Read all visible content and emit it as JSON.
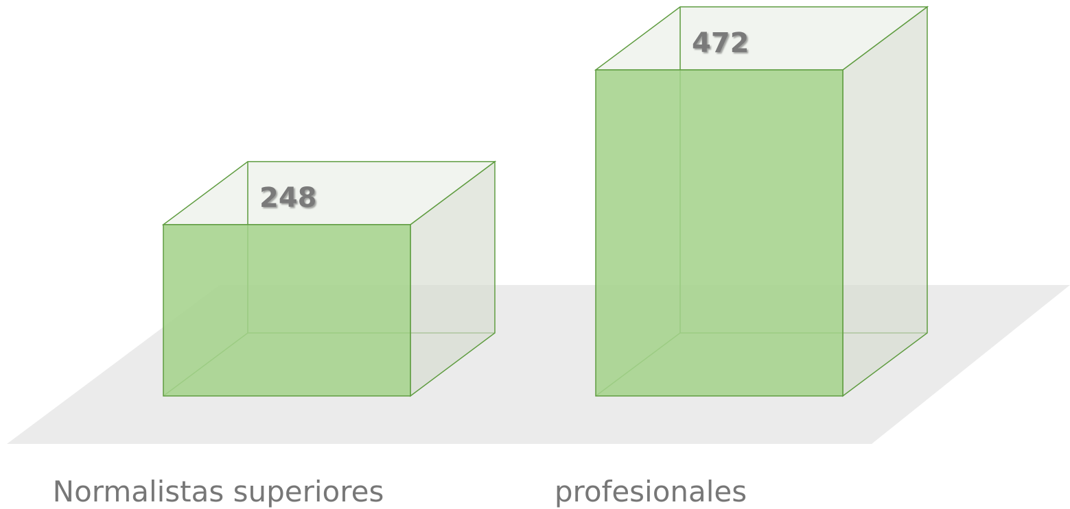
{
  "chart_data": {
    "type": "bar3d",
    "categories": [
      "Normalistas superiores",
      "profesionales"
    ],
    "values": [
      248,
      472
    ],
    "color": "#a5d38c"
  }
}
